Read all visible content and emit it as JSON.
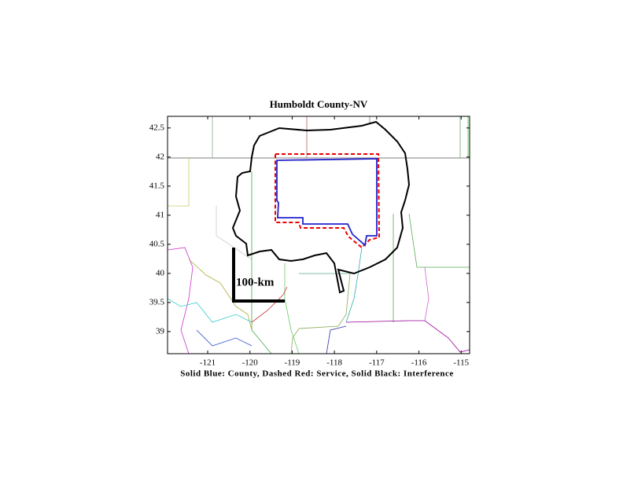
{
  "chart_data": {
    "type": "map",
    "title": "Humboldt County-NV",
    "x_label": "Solid Blue: County, Dashed Red: Service, Solid Black: Interference",
    "scale_label": "100-km",
    "xlim": [
      -121.95,
      -114.8
    ],
    "ylim": [
      38.62,
      42.7
    ],
    "xticks": [
      -121,
      -120,
      -119,
      -118,
      -117,
      -116,
      -115
    ],
    "yticks": [
      39,
      39.5,
      40,
      40.5,
      41,
      41.5,
      42,
      42.5
    ]
  }
}
